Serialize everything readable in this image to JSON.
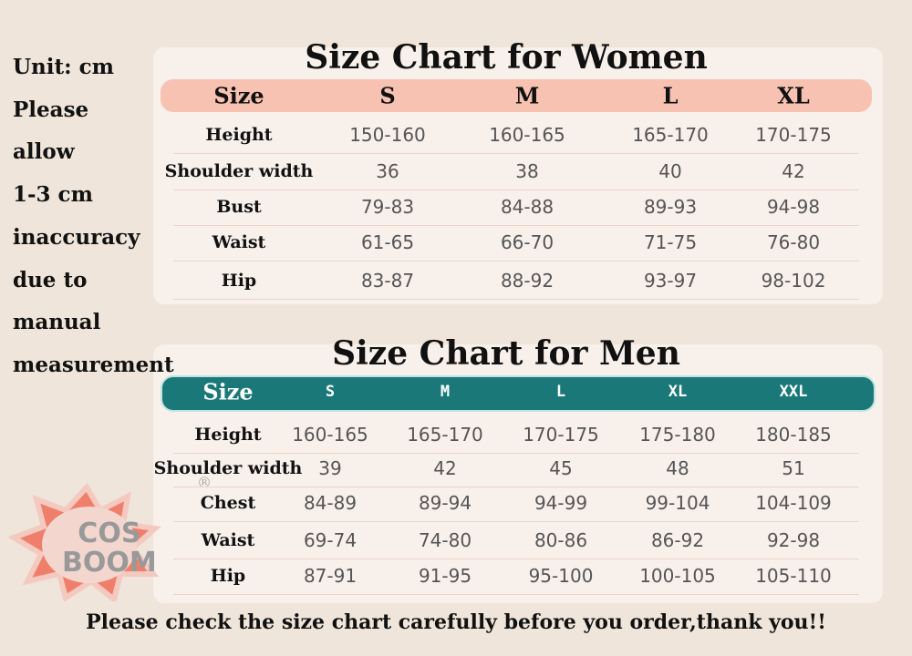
{
  "side_note": [
    "Unit: cm",
    "Please",
    "allow",
    "1-3 cm",
    "inaccuracy",
    "due to",
    "manual",
    "measurement"
  ],
  "logo": {
    "lines": [
      "COS",
      "BOOM"
    ],
    "mark": "®"
  },
  "women": {
    "title": "Size Chart for Women",
    "header": [
      "Size",
      "S",
      "M",
      "L",
      "XL"
    ],
    "rows": [
      [
        "Height",
        "150-160",
        "160-165",
        "165-170",
        "170-175"
      ],
      [
        "Shoulder width",
        "36",
        "38",
        "40",
        "42"
      ],
      [
        "Bust",
        "79-83",
        "84-88",
        "89-93",
        "94-98"
      ],
      [
        "Waist",
        "61-65",
        "66-70",
        "71-75",
        "76-80"
      ],
      [
        "Hip",
        "83-87",
        "88-92",
        "93-97",
        "98-102"
      ]
    ]
  },
  "men": {
    "title": "Size Chart for Men",
    "header": [
      "Size",
      "S",
      "M",
      "L",
      "XL",
      "XXL"
    ],
    "rows": [
      [
        "Height",
        "160-165",
        "165-170",
        "170-175",
        "175-180",
        "180-185"
      ],
      [
        "Shoulder width",
        "39",
        "42",
        "45",
        "48",
        "51"
      ],
      [
        "Chest",
        "84-89",
        "89-94",
        "94-99",
        "99-104",
        "104-109"
      ],
      [
        "Waist",
        "69-74",
        "74-80",
        "80-86",
        "86-92",
        "92-98"
      ],
      [
        "Hip",
        "87-91",
        "91-95",
        "95-100",
        "100-105",
        "105-110"
      ]
    ]
  },
  "footer": "Please check the size chart carefully before you order,thank you!!"
}
